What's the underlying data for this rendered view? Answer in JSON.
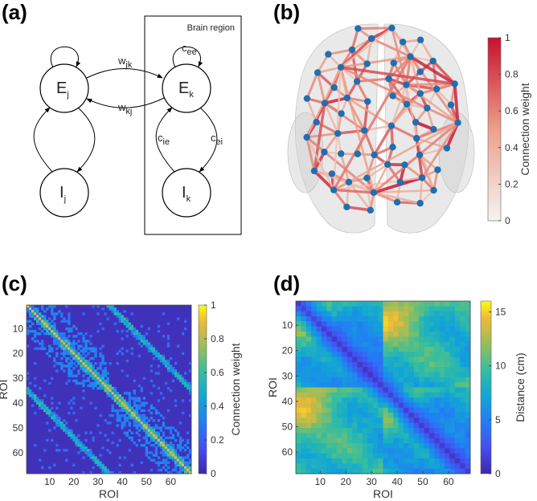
{
  "panel_a": {
    "label": "(a)",
    "box_title": "Brain region",
    "nodes": [
      {
        "symbol": "E",
        "subscript": "j"
      },
      {
        "symbol": "E",
        "subscript": "k"
      },
      {
        "symbol": "I",
        "subscript": "j"
      },
      {
        "symbol": "I",
        "subscript": "k"
      }
    ],
    "edges": [
      {
        "symbol": "w",
        "subscript": "jk"
      },
      {
        "symbol": "w",
        "subscript": "kj"
      },
      {
        "symbol": "c",
        "subscript": "ee"
      },
      {
        "symbol": "c",
        "subscript": "ie"
      },
      {
        "symbol": "c",
        "subscript": "ei"
      }
    ]
  },
  "panel_b": {
    "label": "(b)",
    "colorbar": {
      "label": "Connection weight",
      "lim": [
        0,
        1
      ],
      "ticks": [
        0,
        0.2,
        0.4,
        0.6,
        0.8,
        1
      ]
    }
  },
  "panel_c": {
    "label": "(c)",
    "xlabel": "ROI",
    "ylabel": "ROI",
    "xlim": [
      0.5,
      68.5
    ],
    "ylim": [
      0.5,
      68.5
    ],
    "xticks": [
      10,
      20,
      30,
      40,
      50,
      60
    ],
    "yticks": [
      10,
      20,
      30,
      40,
      50,
      60
    ],
    "colorbar": {
      "label": "Connection weight",
      "lim": [
        0,
        1
      ],
      "ticks": [
        0,
        0.2,
        0.4,
        0.6,
        0.8,
        1
      ]
    }
  },
  "panel_d": {
    "label": "(d)",
    "xlabel": "ROI",
    "ylabel": "ROI",
    "xlim": [
      0.5,
      68.5
    ],
    "ylim": [
      0.5,
      68.5
    ],
    "xticks": [
      10,
      20,
      30,
      40,
      50,
      60
    ],
    "yticks": [
      10,
      20,
      30,
      40,
      50,
      60
    ],
    "colorbar": {
      "label": "Distance (cm)",
      "lim": [
        0,
        16
      ],
      "ticks": [
        0,
        5,
        10,
        15
      ]
    }
  }
}
